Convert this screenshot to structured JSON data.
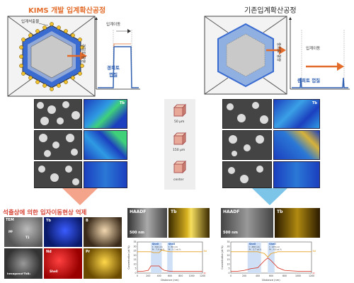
{
  "left_title": "KIMS 개발 입계확산공정",
  "right_title": "기존입계확산공정",
  "left_schematic": {
    "particle_label": "입계석출물",
    "arrow_label": "입계이동",
    "y_axis_label": "경희토 함량",
    "shell_label": "경희토\n껍질"
  },
  "right_schematic": {
    "arrow_label": "입계이동",
    "y_axis_label": "중희토 함량",
    "shell_label": "중희토 껍질"
  },
  "center_samples": {
    "depths": [
      "50 μm",
      "150 μm",
      "center"
    ]
  },
  "map_element": "Tb",
  "bottom_left": {
    "title": "석출상에 의한 입자이동현상 억제",
    "tiles": [
      "TEM",
      "Tb",
      "B",
      "Nd",
      "Pr"
    ],
    "tile_annotations": [
      "PP",
      "T1",
      "hexagonal-TbB₂"
    ],
    "shell_label": "Shell"
  },
  "bottom_middle": {
    "haadf_label": "HAADF",
    "map_element": "Tb",
    "scale": "500 nm",
    "chart_data": {
      "type": "line",
      "xlabel": "Distance (nm)",
      "ylabel": "Concentration (at.%)",
      "xlim": [
        0,
        1200
      ],
      "ylim": [
        0,
        35
      ],
      "x_ticks": [
        "0",
        "200",
        "400",
        "600",
        "800",
        "1000",
        "1200"
      ],
      "y_ticks": [
        "0",
        "5",
        "10",
        "15",
        "20",
        "25",
        "30",
        "35"
      ],
      "series_labels": [
        "Nd",
        "Pr"
      ],
      "series_colors": [
        "#e8a020",
        "#d84335"
      ],
      "annotations": [
        {
          "label": "Shell",
          "detail1": "t : 310 nm",
          "detail2": "Pr : 7.9 at.%"
        },
        {
          "label": "Shell",
          "detail1": "t : 50 nm",
          "detail2": "Pr : 5.1 at.%"
        }
      ],
      "series": [
        {
          "name": "Nd",
          "x": [
            0,
            100,
            200,
            250,
            300,
            400,
            450,
            500,
            600,
            700,
            800,
            1000,
            1200
          ],
          "values": [
            24,
            24,
            24,
            24,
            23,
            23,
            26,
            25,
            24,
            24,
            24,
            24,
            24
          ]
        },
        {
          "name": "Pr",
          "x": [
            0,
            100,
            200,
            250,
            300,
            400,
            450,
            500,
            600,
            700,
            800,
            1000,
            1200
          ],
          "values": [
            2,
            2,
            3,
            8,
            8,
            8,
            5,
            3,
            2,
            2,
            2,
            2,
            2
          ]
        }
      ]
    }
  },
  "bottom_right": {
    "haadf_label": "HAADF",
    "map_element": "Tb",
    "scale": "500 nm",
    "chart_data": {
      "type": "line",
      "xlabel": "Distance (nm)",
      "ylabel": "Concentration (at.%)",
      "xlim": [
        0,
        1200
      ],
      "ylim": [
        0,
        35
      ],
      "x_ticks": [
        "0",
        "200",
        "400",
        "600",
        "800",
        "1000",
        "1200"
      ],
      "y_ticks": [
        "0",
        "5",
        "10",
        "15",
        "20",
        "25",
        "30",
        "35"
      ],
      "series_labels": [
        "Nd",
        "Pr"
      ],
      "series_colors": [
        "#e8a020",
        "#d84335"
      ],
      "annotations": [
        {
          "label": "Shell",
          "detail1": "t : 450 nm",
          "detail2": "Pr : 3.7 at.%"
        },
        {
          "label": "Shell",
          "detail1": "t : 270 nm",
          "detail2": "Pr : 4.8 at.%"
        }
      ],
      "series": [
        {
          "name": "Nd",
          "x": [
            0,
            100,
            200,
            300,
            400,
            500,
            550,
            600,
            700,
            800,
            1000,
            1200
          ],
          "values": [
            24,
            24,
            24,
            24,
            24,
            22,
            18,
            22,
            24,
            24,
            24,
            24
          ]
        },
        {
          "name": "Pr",
          "x": [
            0,
            100,
            200,
            300,
            400,
            500,
            550,
            600,
            700,
            800,
            1000,
            1200
          ],
          "values": [
            2,
            2,
            3,
            5,
            6,
            14,
            17,
            14,
            6,
            3,
            2,
            2
          ]
        }
      ]
    }
  }
}
